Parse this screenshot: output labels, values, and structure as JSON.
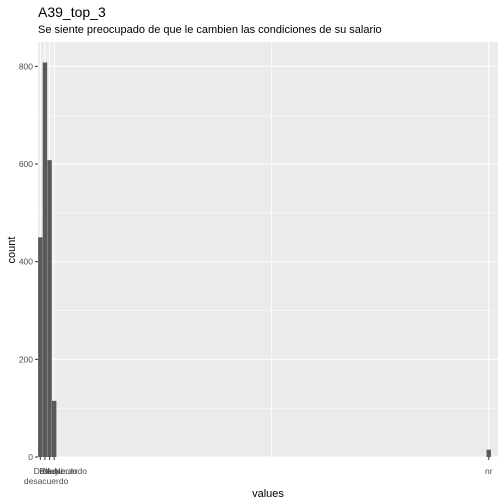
{
  "chart_data": {
    "type": "bar",
    "title": "A39_top_3",
    "subtitle": "Se siente preocupado de que le cambien las condiciones de su salario",
    "xlabel": "values",
    "ylabel": "count",
    "ylim": [
      0,
      850
    ],
    "yticks": [
      0,
      200,
      400,
      600,
      800
    ],
    "grid": true,
    "colors": {
      "panel": "#ebebeb",
      "grid": "#ffffff",
      "bar": "#595959"
    },
    "x_tick_labels": [
      {
        "label": "En",
        "x": 0.9
      },
      {
        "label": "desacuerdo",
        "x": 1.25,
        "second_line": true
      },
      {
        "label": "Muy",
        "x": 2.3
      },
      {
        "label": "De acuerdo",
        "x": 3.3
      },
      {
        "label": "Ni",
        "x": 3.9
      },
      {
        "label": "desacuerdo",
        "x": 5.3
      },
      {
        "label": "nr",
        "x": 97
      }
    ],
    "xlim": [
      -0.5,
      99
    ],
    "bars": [
      {
        "x": 0,
        "value": 450
      },
      {
        "x": 1,
        "value": 808
      },
      {
        "x": 2,
        "value": 608
      },
      {
        "x": 3,
        "value": 115
      },
      {
        "x": 97,
        "value": 15
      }
    ]
  }
}
